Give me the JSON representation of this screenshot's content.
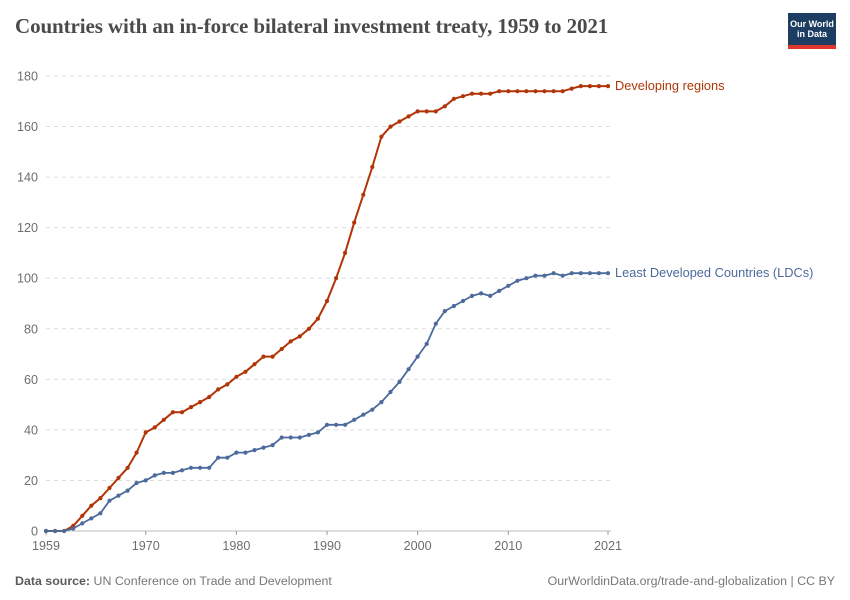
{
  "header": {
    "title": "Countries with an in-force bilateral investment treaty, 1959 to 2021",
    "logo": {
      "line1": "Our World",
      "line2": "in Data"
    }
  },
  "footer": {
    "source_label": "Data source:",
    "source_value": "UN Conference on Trade and Development",
    "link": "OurWorldinData.org/trade-and-globalization",
    "separator": " | ",
    "license": "CC BY"
  },
  "colors": {
    "developing": "#b13507",
    "ldc": "#4c6a9c",
    "gridline": "#dcdcdc",
    "axis": "#bbbbbb",
    "tick": "#999999",
    "tick_label": "#6e6e6e",
    "title": "#4a4a4a",
    "logo_bg": "#1d3d63",
    "logo_bar": "#e0362d"
  },
  "chart_data": {
    "type": "line",
    "title": "Countries with an in-force bilateral investment treaty, 1959 to 2021",
    "xlabel": "",
    "ylabel": "",
    "xlim": [
      1959,
      2021
    ],
    "ylim": [
      0,
      180
    ],
    "xticks": [
      1959,
      1970,
      1980,
      1990,
      2000,
      2010,
      2021
    ],
    "yticks": [
      0,
      20,
      40,
      60,
      80,
      100,
      120,
      140,
      160,
      180
    ],
    "grid": "horizontal-dashed",
    "legend_position": "end-of-line",
    "x": [
      1959,
      1960,
      1961,
      1962,
      1963,
      1964,
      1965,
      1966,
      1967,
      1968,
      1969,
      1970,
      1971,
      1972,
      1973,
      1974,
      1975,
      1976,
      1977,
      1978,
      1979,
      1980,
      1981,
      1982,
      1983,
      1984,
      1985,
      1986,
      1987,
      1988,
      1989,
      1990,
      1991,
      1992,
      1993,
      1994,
      1995,
      1996,
      1997,
      1998,
      1999,
      2000,
      2001,
      2002,
      2003,
      2004,
      2005,
      2006,
      2007,
      2008,
      2009,
      2010,
      2011,
      2012,
      2013,
      2014,
      2015,
      2016,
      2017,
      2018,
      2019,
      2020,
      2021
    ],
    "series": [
      {
        "name": "Developing regions",
        "color": "#b13507",
        "values": [
          0,
          0,
          0,
          2,
          6,
          10,
          13,
          17,
          21,
          25,
          31,
          39,
          41,
          44,
          47,
          47,
          49,
          51,
          53,
          56,
          58,
          61,
          63,
          66,
          69,
          69,
          72,
          75,
          77,
          80,
          84,
          91,
          100,
          110,
          122,
          133,
          144,
          156,
          160,
          162,
          164,
          166,
          166,
          166,
          168,
          171,
          172,
          173,
          173,
          173,
          174,
          174,
          174,
          174,
          174,
          174,
          174,
          174,
          175,
          176,
          176,
          176,
          176
        ]
      },
      {
        "name": "Least Developed Countries (LDCs)",
        "color": "#4c6a9c",
        "values": [
          0,
          0,
          0,
          1,
          3,
          5,
          7,
          12,
          14,
          16,
          19,
          20,
          22,
          23,
          23,
          24,
          25,
          25,
          25,
          29,
          29,
          31,
          31,
          32,
          33,
          34,
          37,
          37,
          37,
          38,
          39,
          42,
          42,
          42,
          44,
          46,
          48,
          51,
          55,
          59,
          64,
          69,
          74,
          82,
          87,
          89,
          91,
          93,
          94,
          93,
          95,
          97,
          99,
          100,
          101,
          101,
          102,
          101,
          102,
          102,
          102,
          102,
          102
        ]
      }
    ]
  }
}
